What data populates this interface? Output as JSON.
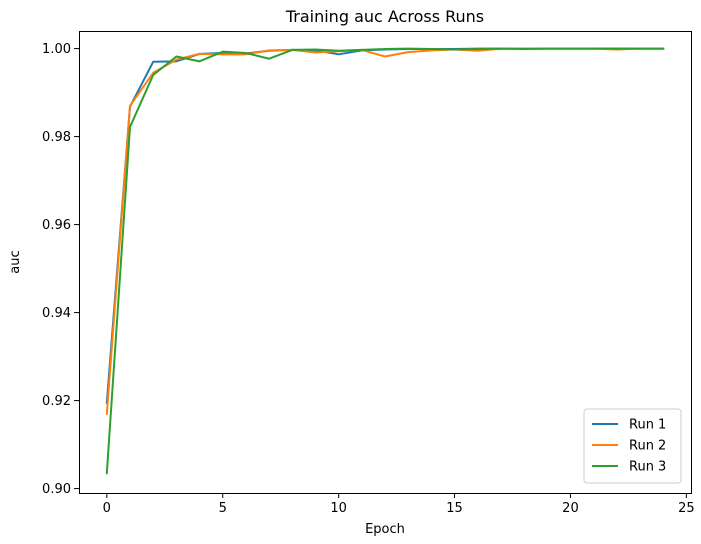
{
  "chart_data": {
    "type": "line",
    "title": "Training auc Across Runs",
    "xlabel": "Epoch",
    "ylabel": "auc",
    "xlim": [
      -1.2,
      25.2
    ],
    "ylim": [
      0.899,
      1.004
    ],
    "xticks": [
      0,
      5,
      10,
      15,
      20,
      25
    ],
    "yticks": [
      0.9,
      0.92,
      0.94,
      0.96,
      0.98,
      1.0
    ],
    "ytick_decimals": 2,
    "grid": false,
    "legend_position": "lower-right",
    "x": [
      0,
      1,
      2,
      3,
      4,
      5,
      6,
      7,
      8,
      9,
      10,
      11,
      12,
      13,
      14,
      15,
      16,
      17,
      18,
      19,
      20,
      21,
      22,
      23,
      24
    ],
    "series": [
      {
        "name": "Run 1",
        "color": "#1f77b4",
        "values": [
          0.9195,
          0.9868,
          0.997,
          0.9971,
          0.9988,
          0.999,
          0.9989,
          0.9995,
          0.9997,
          0.9996,
          0.9987,
          0.9996,
          0.9998,
          0.9999,
          0.9999,
          0.9999,
          1.0,
          1.0,
          1.0,
          1.0,
          1.0,
          1.0,
          1.0,
          1.0,
          1.0
        ]
      },
      {
        "name": "Run 2",
        "color": "#ff7f0e",
        "values": [
          0.917,
          0.987,
          0.9945,
          0.9975,
          0.9988,
          0.9987,
          0.9987,
          0.9996,
          0.9997,
          0.9991,
          0.9994,
          0.9997,
          0.9982,
          0.9992,
          0.9996,
          0.9998,
          0.9995,
          1.0,
          1.0,
          1.0,
          1.0,
          1.0,
          0.9998,
          1.0,
          1.0
        ]
      },
      {
        "name": "Run 3",
        "color": "#2ca02c",
        "values": [
          0.9035,
          0.9822,
          0.994,
          0.9982,
          0.9971,
          0.9993,
          0.999,
          0.9977,
          0.9997,
          0.9998,
          0.9995,
          0.9997,
          0.9999,
          1.0,
          0.9999,
          0.9998,
          0.9999,
          1.0,
          0.9999,
          1.0,
          1.0,
          1.0,
          1.0,
          1.0,
          1.0
        ]
      }
    ]
  }
}
